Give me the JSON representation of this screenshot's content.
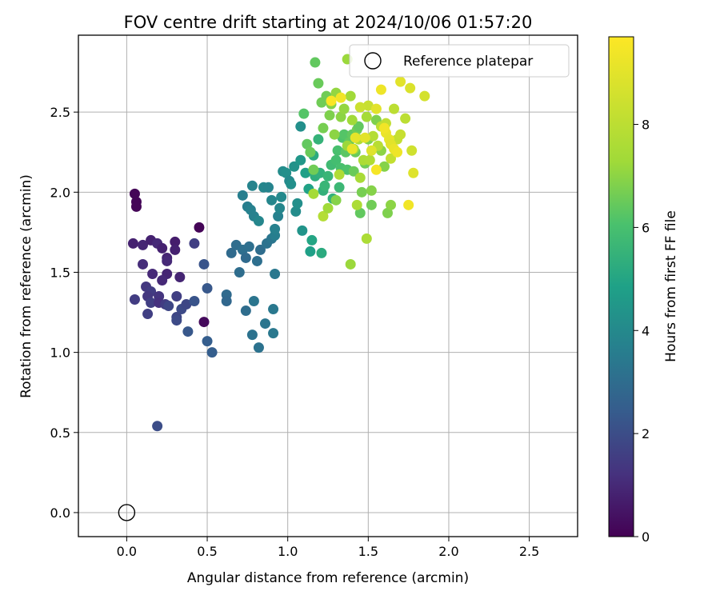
{
  "chart_data": {
    "type": "scatter",
    "title": "FOV centre drift starting at 2024/10/06 01:57:20",
    "xlabel": "Angular distance from reference (arcmin)",
    "ylabel": "Rotation from reference (arcmin)",
    "xlim": [
      -0.3,
      2.8
    ],
    "ylim": [
      -0.15,
      2.98
    ],
    "xticks": [
      0.0,
      0.5,
      1.0,
      1.5,
      2.0,
      2.5
    ],
    "yticks": [
      0.0,
      0.5,
      1.0,
      1.5,
      2.0,
      2.5
    ],
    "xtick_labels": [
      "0.0",
      "0.5",
      "1.0",
      "1.5",
      "2.0",
      "2.5"
    ],
    "ytick_labels": [
      "0.0",
      "0.5",
      "1.0",
      "1.5",
      "2.0",
      "2.5"
    ],
    "grid": true,
    "legend": {
      "placement": "top-right",
      "entries": [
        "Reference platepar"
      ]
    },
    "reference_point": {
      "x": 0.0,
      "y": 0.0
    },
    "colorbar": {
      "label": "Hours from first FF file",
      "colormap": "viridis",
      "range": [
        0,
        9.7
      ],
      "ticks": [
        0,
        2,
        4,
        6,
        8
      ],
      "tick_labels": [
        "0",
        "2",
        "4",
        "6",
        "8"
      ]
    },
    "points": [
      [
        0.05,
        1.99,
        0.1
      ],
      [
        0.06,
        1.94,
        0.1
      ],
      [
        0.06,
        1.91,
        0.1
      ],
      [
        0.45,
        1.78,
        0.1
      ],
      [
        0.48,
        1.19,
        0.2
      ],
      [
        0.04,
        1.68,
        0.8
      ],
      [
        0.1,
        1.67,
        0.9
      ],
      [
        0.15,
        1.7,
        0.8
      ],
      [
        0.19,
        1.68,
        1.0
      ],
      [
        0.22,
        1.65,
        0.8
      ],
      [
        0.3,
        1.69,
        0.7
      ],
      [
        0.3,
        1.64,
        0.8
      ],
      [
        0.25,
        1.59,
        0.9
      ],
      [
        0.25,
        1.57,
        1.0
      ],
      [
        0.1,
        1.55,
        1.1
      ],
      [
        0.16,
        1.49,
        1.0
      ],
      [
        0.25,
        1.49,
        0.9
      ],
      [
        0.33,
        1.47,
        0.9
      ],
      [
        0.22,
        1.45,
        1.0
      ],
      [
        0.05,
        1.33,
        1.5
      ],
      [
        0.12,
        1.41,
        1.4
      ],
      [
        0.15,
        1.38,
        1.5
      ],
      [
        0.13,
        1.35,
        1.4
      ],
      [
        0.15,
        1.31,
        1.6
      ],
      [
        0.2,
        1.35,
        1.3
      ],
      [
        0.2,
        1.31,
        1.2
      ],
      [
        0.24,
        1.3,
        1.5
      ],
      [
        0.26,
        1.29,
        1.8
      ],
      [
        0.31,
        1.35,
        1.6
      ],
      [
        0.34,
        1.27,
        1.9
      ],
      [
        0.37,
        1.3,
        1.8
      ],
      [
        0.31,
        1.22,
        1.8
      ],
      [
        0.31,
        1.2,
        1.9
      ],
      [
        0.13,
        1.24,
        1.6
      ],
      [
        0.38,
        1.13,
        2.3
      ],
      [
        0.42,
        1.32,
        2.2
      ],
      [
        0.42,
        1.68,
        1.6
      ],
      [
        0.48,
        1.55,
        2.2
      ],
      [
        0.5,
        1.4,
        2.3
      ],
      [
        0.5,
        1.07,
        2.5
      ],
      [
        0.53,
        1.0,
        2.5
      ],
      [
        0.19,
        0.54,
        2.0
      ],
      [
        0.62,
        1.36,
        2.9
      ],
      [
        0.62,
        1.32,
        2.8
      ],
      [
        0.65,
        1.62,
        2.9
      ],
      [
        0.68,
        1.67,
        3.0
      ],
      [
        0.7,
        1.5,
        3.0
      ],
      [
        0.72,
        1.64,
        3.1
      ],
      [
        0.74,
        1.59,
        2.9
      ],
      [
        0.74,
        1.26,
        3.0
      ],
      [
        0.76,
        1.66,
        3.1
      ],
      [
        0.78,
        1.11,
        3.2
      ],
      [
        0.79,
        1.32,
        3.3
      ],
      [
        0.81,
        1.57,
        3.1
      ],
      [
        0.82,
        1.03,
        3.2
      ],
      [
        0.83,
        1.64,
        3.0
      ],
      [
        0.86,
        1.18,
        3.3
      ],
      [
        0.87,
        1.68,
        3.2
      ],
      [
        0.9,
        1.71,
        3.3
      ],
      [
        0.91,
        1.12,
        3.4
      ],
      [
        0.91,
        1.27,
        3.4
      ],
      [
        0.92,
        1.49,
        3.4
      ],
      [
        0.72,
        1.98,
        3.6
      ],
      [
        0.75,
        1.91,
        3.6
      ],
      [
        0.77,
        1.89,
        3.7
      ],
      [
        0.78,
        2.04,
        3.8
      ],
      [
        0.79,
        1.85,
        3.7
      ],
      [
        0.82,
        1.82,
        3.9
      ],
      [
        0.85,
        2.03,
        3.9
      ],
      [
        0.88,
        2.03,
        3.8
      ],
      [
        0.9,
        1.95,
        3.9
      ],
      [
        0.92,
        1.73,
        3.6
      ],
      [
        0.92,
        1.77,
        3.7
      ],
      [
        0.94,
        1.85,
        3.7
      ],
      [
        0.95,
        1.9,
        3.9
      ],
      [
        0.96,
        1.97,
        4.0
      ],
      [
        0.97,
        2.13,
        4.1
      ],
      [
        0.99,
        2.12,
        4.2
      ],
      [
        1.01,
        2.07,
        4.0
      ],
      [
        1.02,
        2.05,
        4.2
      ],
      [
        1.04,
        2.16,
        4.3
      ],
      [
        1.05,
        1.88,
        4.1
      ],
      [
        1.06,
        1.93,
        4.2
      ],
      [
        1.08,
        2.2,
        4.5
      ],
      [
        1.08,
        2.41,
        4.2
      ],
      [
        1.09,
        1.76,
        4.4
      ],
      [
        1.11,
        2.12,
        4.8
      ],
      [
        1.13,
        2.02,
        4.9
      ],
      [
        1.14,
        1.63,
        4.8
      ],
      [
        1.15,
        1.7,
        5.0
      ],
      [
        1.16,
        2.23,
        5.2
      ],
      [
        1.17,
        2.1,
        5.3
      ],
      [
        1.19,
        2.33,
        5.5
      ],
      [
        1.2,
        2.12,
        5.4
      ],
      [
        1.21,
        1.62,
        5.2
      ],
      [
        1.22,
        2.01,
        5.4
      ],
      [
        1.23,
        2.04,
        5.6
      ],
      [
        1.25,
        2.1,
        5.6
      ],
      [
        1.27,
        2.17,
        5.8
      ],
      [
        1.28,
        1.96,
        5.4
      ],
      [
        1.3,
        2.2,
        5.9
      ],
      [
        1.31,
        2.26,
        6.0
      ],
      [
        1.32,
        2.03,
        5.7
      ],
      [
        1.33,
        2.15,
        6.0
      ],
      [
        1.34,
        2.34,
        6.1
      ],
      [
        1.35,
        2.36,
        6.2
      ],
      [
        1.36,
        2.25,
        6.3
      ],
      [
        1.37,
        2.14,
        6.1
      ],
      [
        1.38,
        2.31,
        6.4
      ],
      [
        1.4,
        2.36,
        6.4
      ],
      [
        1.41,
        2.13,
        6.5
      ],
      [
        1.42,
        2.25,
        6.5
      ],
      [
        1.43,
        2.39,
        6.6
      ],
      [
        1.44,
        2.41,
        6.4
      ],
      [
        1.45,
        1.87,
        6.4
      ],
      [
        1.46,
        2.0,
        6.7
      ],
      [
        1.48,
        2.18,
        6.6
      ],
      [
        1.5,
        2.33,
        6.8
      ],
      [
        1.52,
        1.92,
        6.6
      ],
      [
        1.52,
        2.01,
        6.9
      ],
      [
        1.55,
        2.45,
        6.8
      ],
      [
        1.58,
        2.26,
        7.0
      ],
      [
        1.6,
        2.16,
        6.9
      ],
      [
        1.62,
        1.87,
        6.8
      ],
      [
        1.64,
        1.92,
        7.0
      ],
      [
        1.1,
        2.49,
        6.2
      ],
      [
        1.12,
        2.3,
        6.4
      ],
      [
        1.14,
        2.25,
        6.5
      ],
      [
        1.16,
        2.14,
        6.6
      ],
      [
        1.17,
        2.81,
        6.4
      ],
      [
        1.19,
        2.68,
        6.5
      ],
      [
        1.21,
        2.56,
        6.6
      ],
      [
        1.22,
        2.4,
        6.7
      ],
      [
        1.24,
        2.6,
        6.6
      ],
      [
        1.26,
        2.48,
        6.8
      ],
      [
        1.27,
        2.55,
        6.9
      ],
      [
        1.29,
        2.36,
        7.0
      ],
      [
        1.3,
        2.62,
        7.1
      ],
      [
        1.33,
        2.47,
        7.0
      ],
      [
        1.35,
        2.52,
        7.1
      ],
      [
        1.37,
        2.29,
        7.2
      ],
      [
        1.39,
        2.6,
        7.3
      ],
      [
        1.4,
        2.45,
        7.3
      ],
      [
        1.41,
        2.27,
        7.4
      ],
      [
        1.43,
        1.92,
        7.6
      ],
      [
        1.44,
        2.33,
        7.7
      ],
      [
        1.45,
        2.09,
        7.5
      ],
      [
        1.47,
        2.2,
        7.6
      ],
      [
        1.49,
        2.47,
        7.4
      ],
      [
        1.51,
        2.2,
        7.7
      ],
      [
        1.53,
        2.35,
        7.8
      ],
      [
        1.56,
        2.29,
        7.9
      ],
      [
        1.58,
        2.41,
        8.0
      ],
      [
        1.61,
        2.43,
        8.1
      ],
      [
        1.64,
        2.21,
        8.2
      ],
      [
        1.66,
        2.52,
        8.0
      ],
      [
        1.68,
        2.33,
        8.2
      ],
      [
        1.7,
        2.36,
        8.3
      ],
      [
        1.73,
        2.46,
        8.0
      ],
      [
        1.77,
        2.26,
        8.5
      ],
      [
        1.49,
        1.71,
        7.6
      ],
      [
        1.39,
        1.55,
        7.2
      ],
      [
        1.22,
        1.85,
        7.8
      ],
      [
        1.5,
        2.54,
        8.3
      ],
      [
        1.45,
        2.53,
        8.4
      ],
      [
        1.37,
        2.83,
        7.2
      ],
      [
        1.16,
        1.99,
        7.4
      ],
      [
        1.25,
        1.9,
        7.3
      ],
      [
        1.3,
        1.95,
        6.9
      ],
      [
        1.32,
        2.11,
        7.7
      ],
      [
        1.33,
        2.59,
        9.4
      ],
      [
        1.27,
        2.57,
        9.6
      ],
      [
        1.4,
        2.27,
        9.2
      ],
      [
        1.42,
        2.34,
        9.1
      ],
      [
        1.55,
        2.52,
        9.0
      ],
      [
        1.58,
        2.64,
        9.3
      ],
      [
        1.61,
        2.37,
        9.2
      ],
      [
        1.63,
        2.33,
        9.1
      ],
      [
        1.64,
        2.3,
        9.0
      ],
      [
        1.66,
        2.27,
        9.2
      ],
      [
        1.68,
        2.25,
        9.3
      ],
      [
        1.7,
        2.69,
        9.0
      ],
      [
        1.75,
        1.92,
        9.4
      ],
      [
        1.76,
        2.65,
        8.8
      ],
      [
        1.78,
        2.12,
        8.9
      ],
      [
        1.85,
        2.6,
        8.6
      ],
      [
        1.55,
        2.14,
        9.5
      ],
      [
        1.48,
        2.34,
        9.0
      ],
      [
        1.6,
        2.4,
        9.4
      ],
      [
        1.52,
        2.26,
        8.9
      ]
    ]
  }
}
